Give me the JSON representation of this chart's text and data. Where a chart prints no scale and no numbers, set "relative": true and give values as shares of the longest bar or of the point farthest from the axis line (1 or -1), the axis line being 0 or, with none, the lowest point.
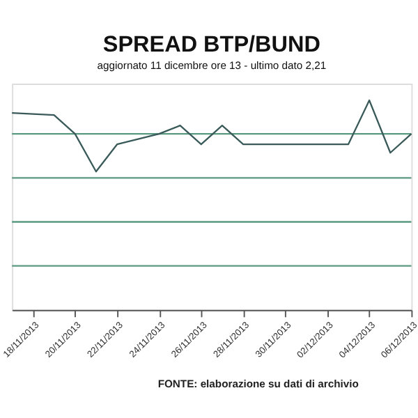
{
  "chart_data": {
    "type": "line",
    "title": "SPREAD BTP/BUND",
    "subtitle": "aggiornato 11 dicembre ore 13 - ultimo dato 2,21",
    "relative": true,
    "x": [
      "2013-11-17",
      "2013-11-19",
      "2013-11-20",
      "2013-11-21",
      "2013-11-22",
      "2013-11-24",
      "2013-11-25",
      "2013-11-26",
      "2013-11-27",
      "2013-11-28",
      "2013-12-03",
      "2013-12-04",
      "2013-12-05",
      "2013-12-06"
    ],
    "series": [
      {
        "color": "#3a5a5a",
        "values": [
          0.94,
          0.93,
          0.84,
          0.66,
          0.79,
          0.84,
          0.88,
          0.79,
          0.88,
          0.79,
          0.79,
          1.0,
          0.75,
          0.84
        ]
      }
    ],
    "xlim": [
      "2013-11-17",
      "2013-12-06"
    ],
    "xticks": [
      {
        "value": "2013-11-18",
        "label": "18/11/2013"
      },
      {
        "value": "2013-11-20",
        "label": "20/11/2013"
      },
      {
        "value": "2013-11-22",
        "label": "22/11/2013"
      },
      {
        "value": "2013-11-24",
        "label": "24/11/2013"
      },
      {
        "value": "2013-11-26",
        "label": "26/11/2013"
      },
      {
        "value": "2013-11-28",
        "label": "28/11/2013"
      },
      {
        "value": "2013-11-30",
        "label": "30/11/2013"
      },
      {
        "value": "2013-12-02",
        "label": "02/12/2013"
      },
      {
        "value": "2013-12-04",
        "label": "04/12/2013"
      },
      {
        "value": "2013-12-06",
        "label": "06/12/2013"
      }
    ],
    "ref_lines": [
      {
        "axis": "y",
        "value": 0.21,
        "color": "#5a9a80"
      },
      {
        "axis": "y",
        "value": 0.42,
        "color": "#5a9a80"
      },
      {
        "axis": "y",
        "value": 0.63,
        "color": "#5a9a80"
      },
      {
        "axis": "y",
        "value": 0.84,
        "color": "#5a9a80"
      }
    ],
    "marker": "none",
    "line_style": "solid",
    "tick_labels": "x",
    "annotations": [
      "FONTE: elaborazione su dati di archivio"
    ]
  }
}
